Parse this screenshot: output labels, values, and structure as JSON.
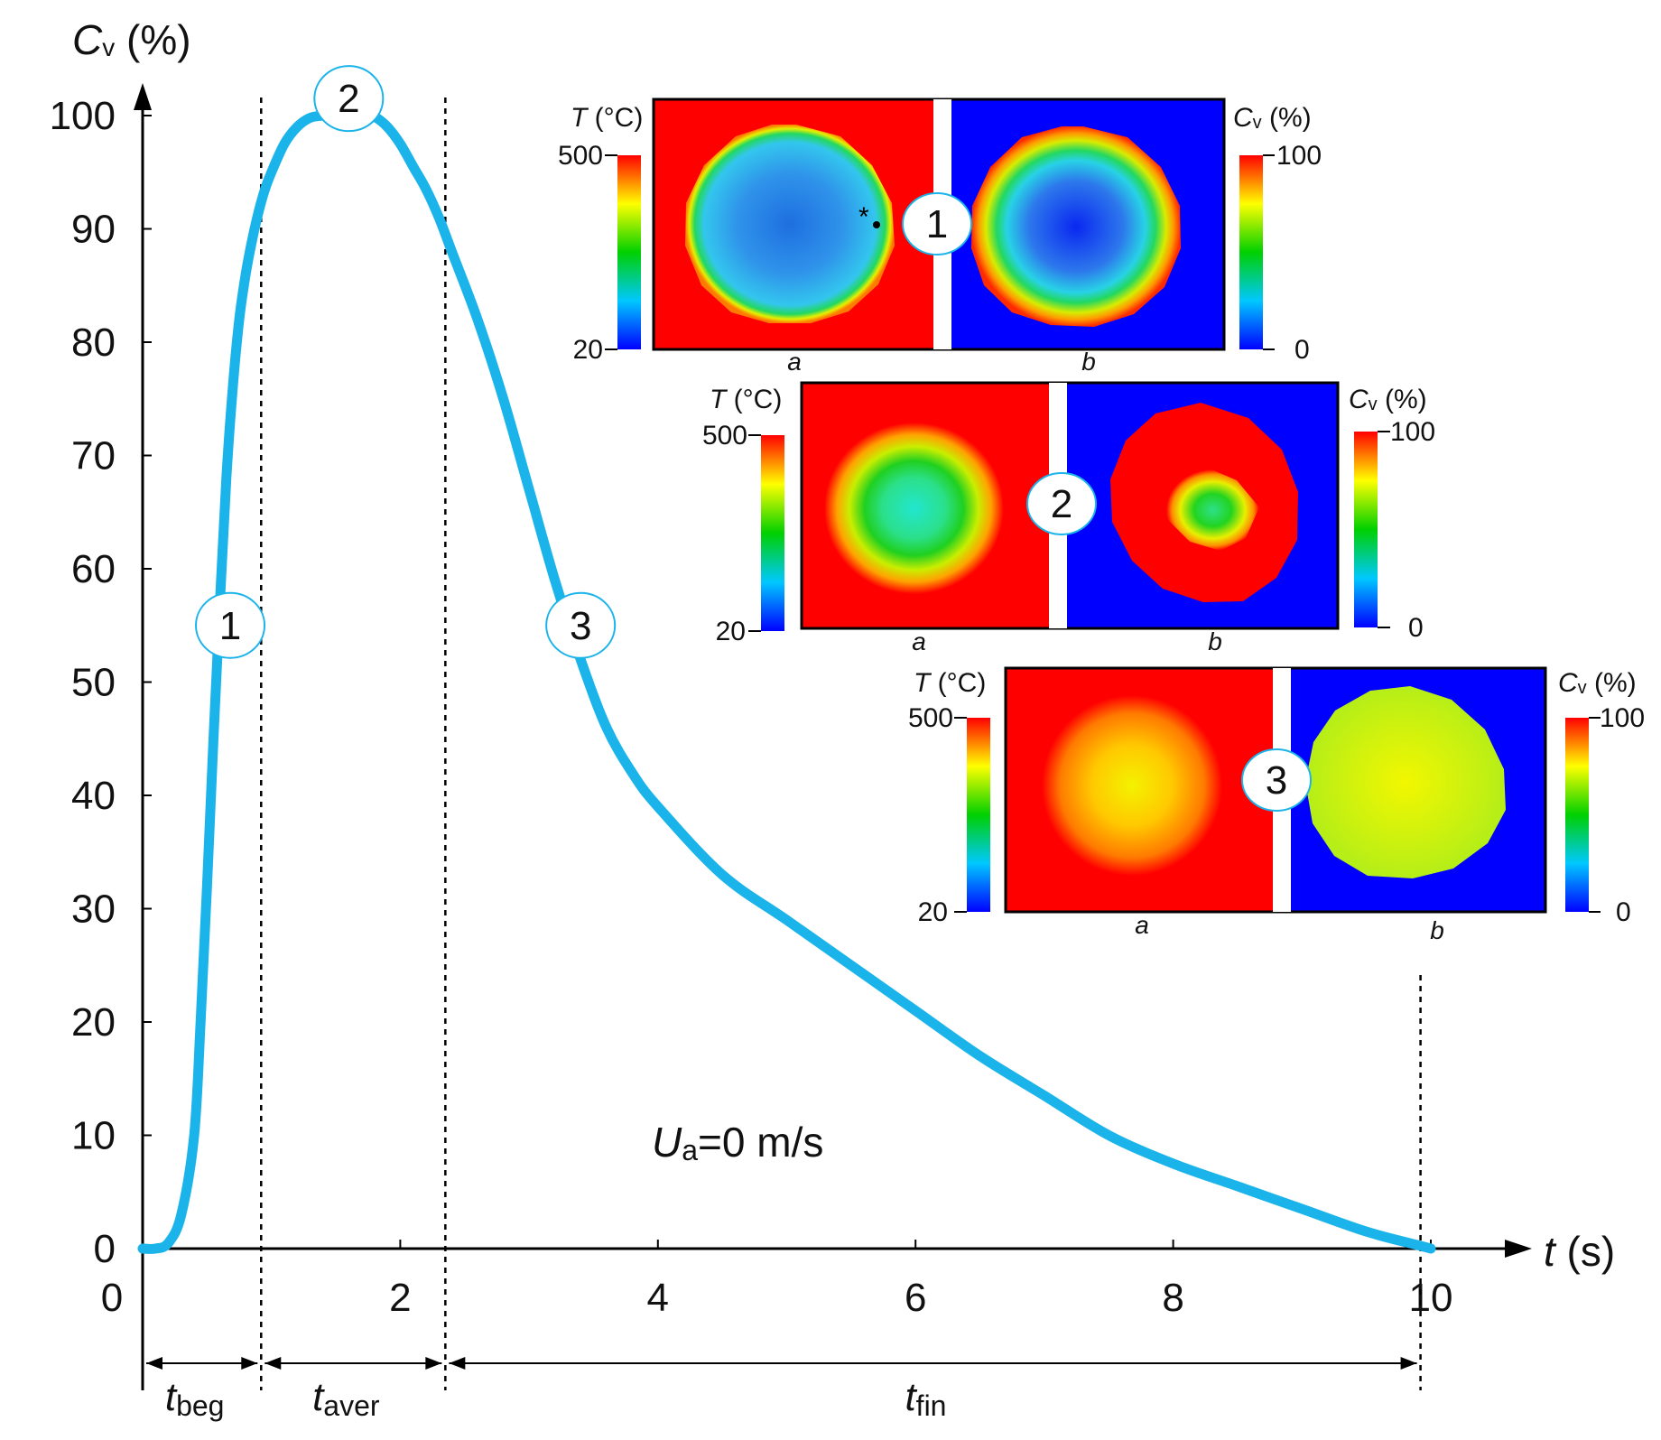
{
  "chart_data": {
    "type": "line",
    "title": "",
    "xlabel": "t (s)",
    "ylabel": "Cv (%)",
    "xlim": [
      0,
      10.8
    ],
    "ylim": [
      0,
      100
    ],
    "x_ticks": [
      0,
      2,
      4,
      6,
      8,
      10
    ],
    "y_ticks": [
      0,
      10,
      20,
      30,
      40,
      50,
      60,
      70,
      80,
      90,
      100
    ],
    "x_tick_labels": [
      "0",
      "2",
      "4",
      "6",
      "8",
      "10"
    ],
    "y_tick_labels": [
      "0",
      "10",
      "20",
      "30",
      "40",
      "50",
      "60",
      "70",
      "80",
      "90",
      "100"
    ],
    "series": [
      {
        "name": "Cv",
        "color": "#1bb4ea",
        "x": [
          0,
          0.1,
          0.2,
          0.3,
          0.4,
          0.45,
          0.5,
          0.55,
          0.6,
          0.65,
          0.7,
          0.75,
          0.8,
          0.85,
          0.9,
          0.95,
          1.0,
          1.1,
          1.2,
          1.3,
          1.4,
          1.5,
          1.6,
          1.7,
          1.8,
          1.9,
          2.0,
          2.1,
          2.2,
          2.3,
          2.4,
          2.6,
          2.8,
          3.0,
          3.2,
          3.4,
          3.6,
          3.8,
          4.0,
          4.5,
          5.0,
          5.5,
          6.0,
          6.5,
          7.0,
          7.5,
          8.0,
          8.5,
          9.0,
          9.5,
          9.9,
          10.0
        ],
        "values": [
          0,
          0,
          0.5,
          3,
          10,
          20,
          32,
          45,
          57,
          68,
          76,
          82,
          86,
          89,
          91.5,
          93.5,
          95,
          97.5,
          99,
          99.8,
          100,
          100.2,
          100.3,
          100.2,
          99.9,
          99,
          97.5,
          95.5,
          93.5,
          91,
          88,
          82,
          75,
          67,
          59,
          52,
          46,
          42,
          39,
          33,
          29,
          25,
          21,
          17,
          13.5,
          10,
          7.5,
          5.5,
          3.5,
          1.5,
          0.3,
          0
        ]
      }
    ],
    "vertical_lines": [
      0.92,
      2.35,
      9.92
    ],
    "intervals": [
      {
        "label": "t",
        "sub": "beg",
        "from": 0,
        "to": 0.92
      },
      {
        "label": "t",
        "sub": "aver",
        "from": 0.92,
        "to": 2.35
      },
      {
        "label": "t",
        "sub": "fin",
        "from": 2.35,
        "to": 9.92
      }
    ],
    "markers": [
      {
        "label": "1",
        "x": 0.68,
        "y": 55
      },
      {
        "label": "2",
        "x": 1.6,
        "y": 101.5
      },
      {
        "label": "3",
        "x": 3.4,
        "y": 55
      }
    ],
    "annotation": {
      "prefix": "U",
      "sub": "a",
      "rest": "=0 m/s"
    },
    "axis_titles": {
      "y_main": "C",
      "y_sub": "v",
      "y_unit": " (%)",
      "x_main": "t",
      "x_unit": " (s)"
    }
  },
  "insets": [
    {
      "marker": "1",
      "t_title_main": "T",
      "t_title_unit": " (°C)",
      "t_max": "500",
      "t_min": "20",
      "cv_title_main": "C",
      "cv_title_sub": "v",
      "cv_title_unit": " (%)",
      "cv_max": "100",
      "cv_min": "0",
      "label_a": "a",
      "label_b": "b",
      "point_label": "*"
    },
    {
      "marker": "2",
      "t_title_main": "T",
      "t_title_unit": " (°C)",
      "t_max": "500",
      "t_min": "20",
      "cv_title_main": "C",
      "cv_title_sub": "v",
      "cv_title_unit": " (%)",
      "cv_max": "100",
      "cv_min": "0",
      "label_a": "a",
      "label_b": "b"
    },
    {
      "marker": "3",
      "t_title_main": "T",
      "t_title_unit": " (°C)",
      "t_max": "500",
      "t_min": "20",
      "cv_title_main": "C",
      "cv_title_sub": "v",
      "cv_title_unit": " (%)",
      "cv_max": "100",
      "cv_min": "0",
      "label_a": "a",
      "label_b": "b"
    }
  ],
  "colors": {
    "curve": "#1bb4ea",
    "hot": "#ff0000",
    "cold": "#0000ff",
    "marker_stroke": "#1bb4ea"
  }
}
